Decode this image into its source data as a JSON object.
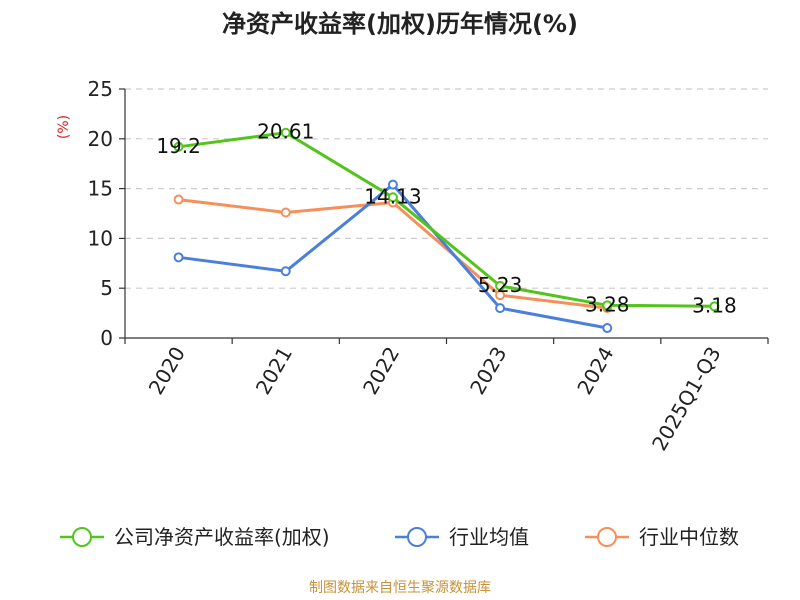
{
  "chart_data": {
    "type": "line",
    "title": "净资产收益率(加权)历年情况(%)",
    "ylabel": "(%)",
    "xlabel": "",
    "ylim": [
      0,
      25
    ],
    "yticks": [
      0,
      5,
      10,
      15,
      20,
      25
    ],
    "grid": true,
    "categories": [
      "2020",
      "2021",
      "2022",
      "2023",
      "2024",
      "2025Q1-Q3"
    ],
    "series": [
      {
        "name": "公司净资产收益率(加权)",
        "color": "#52c41a",
        "values": [
          19.2,
          20.61,
          14.13,
          5.23,
          3.28,
          3.18
        ],
        "labels": [
          "19.2",
          "20.61",
          "14.13",
          "5.23",
          "3.28",
          "3.18"
        ]
      },
      {
        "name": "行业均值",
        "color": "#4a7fdc",
        "values": [
          8.1,
          6.7,
          15.4,
          3.0,
          1.0,
          null
        ]
      },
      {
        "name": "行业中位数",
        "color": "#f5905a",
        "values": [
          13.9,
          12.6,
          13.6,
          4.3,
          3.0,
          null
        ]
      }
    ],
    "legend_position": "bottom",
    "source": "制图数据来自恒生聚源数据库"
  }
}
